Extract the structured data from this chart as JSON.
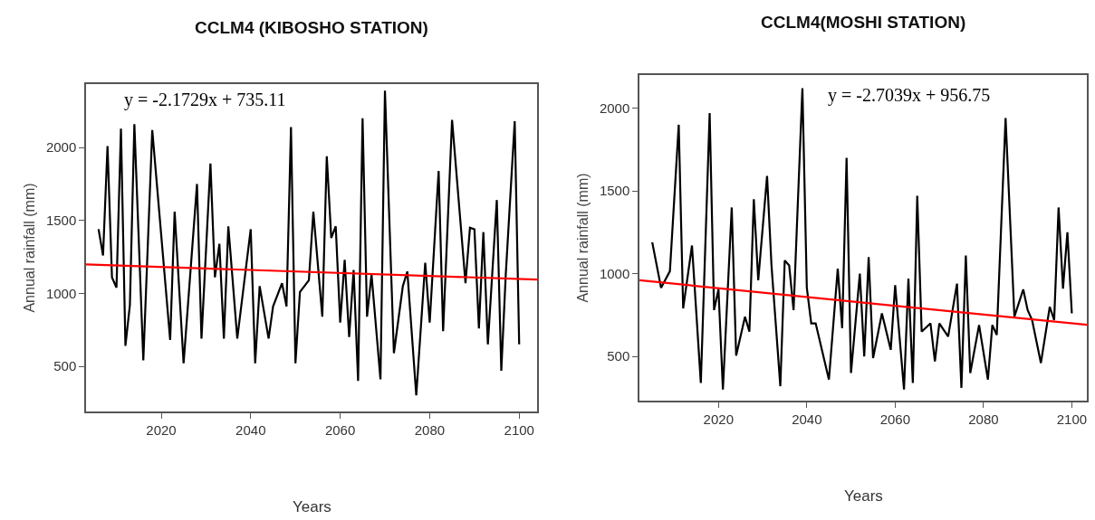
{
  "chart_data": [
    {
      "type": "line",
      "title": "CCLM4 (KIBOSHO STATION)",
      "xlabel": "Years",
      "ylabel": "Annual rainfall (mm)",
      "annotations": [
        "y = -2.1729x + 735.11"
      ],
      "xlim": [
        2003.2,
        2104
      ],
      "xticks": [
        2020,
        2040,
        2060,
        2080,
        2100
      ],
      "ylim": [
        190,
        2435
      ],
      "yticks": [
        500,
        1000,
        1500,
        2000
      ],
      "marker": "none",
      "line_style": "solid",
      "series": [
        {
          "color": "#000000",
          "x": [
            2006,
            2007,
            2008,
            2009,
            2010,
            2011,
            2012,
            2013,
            2014,
            2016,
            2018,
            2022,
            2023,
            2025,
            2028,
            2029,
            2031,
            2032,
            2033,
            2034,
            2035,
            2037,
            2040,
            2041,
            2042,
            2044,
            2045,
            2047,
            2048,
            2049,
            2050,
            2051,
            2053,
            2054,
            2056,
            2057,
            2058,
            2059,
            2060,
            2061,
            2062,
            2063,
            2064,
            2065,
            2066,
            2067,
            2069,
            2070,
            2072,
            2074,
            2075,
            2077,
            2079,
            2080,
            2082,
            2083,
            2085,
            2088,
            2089,
            2090,
            2091,
            2092,
            2093,
            2095,
            2096,
            2097,
            2099,
            2100
          ],
          "values": [
            1440,
            1260,
            2010,
            1110,
            1040,
            2130,
            640,
            920,
            2160,
            540,
            2120,
            680,
            1560,
            520,
            1750,
            690,
            1890,
            1110,
            1340,
            690,
            1460,
            690,
            1440,
            520,
            1050,
            690,
            910,
            1070,
            910,
            2140,
            520,
            1010,
            1090,
            1560,
            840,
            1940,
            1380,
            1460,
            800,
            1230,
            700,
            1160,
            400,
            2200,
            840,
            1130,
            410,
            2390,
            590,
            1050,
            1150,
            300,
            1210,
            800,
            1840,
            740,
            2190,
            1070,
            1450,
            1440,
            760,
            1420,
            650,
            1640,
            470,
            1130,
            2180,
            650
          ]
        },
        {
          "type": "line",
          "color": "#ff0000",
          "x": [
            2003.2,
            2104
          ],
          "values": [
            1198,
            1095
          ]
        }
      ]
    },
    {
      "type": "line",
      "title": "CCLM4(MOSHI STATION)",
      "xlabel": "Years",
      "ylabel": "Annual rainfall (mm)",
      "annotations": [
        "y = -2.7039x + 956.75"
      ],
      "xlim": [
        2002.1,
        2103.4
      ],
      "xticks": [
        2020,
        2040,
        2060,
        2080,
        2100
      ],
      "ylim": [
        233,
        2200
      ],
      "yticks": [
        500,
        1000,
        1500,
        2000
      ],
      "marker": "none",
      "line_style": "solid",
      "series": [
        {
          "color": "#000000",
          "x": [
            2005,
            2007,
            2009,
            2011,
            2012,
            2014,
            2016,
            2018,
            2019,
            2020,
            2021,
            2023,
            2024,
            2026,
            2027,
            2028,
            2029,
            2031,
            2032,
            2034,
            2035,
            2036,
            2037,
            2039,
            2040,
            2041,
            2042,
            2045,
            2047,
            2048,
            2049,
            2050,
            2052,
            2053,
            2054,
            2055,
            2057,
            2059,
            2060,
            2062,
            2063,
            2064,
            2065,
            2066,
            2068,
            2069,
            2070,
            2072,
            2074,
            2075,
            2076,
            2077,
            2079,
            2081,
            2082,
            2083,
            2085,
            2087,
            2089,
            2090,
            2091,
            2093,
            2095,
            2096,
            2097,
            2098,
            2099,
            2100
          ],
          "values": [
            1190,
            915,
            1015,
            1900,
            790,
            1170,
            340,
            1970,
            780,
            905,
            300,
            1400,
            505,
            740,
            650,
            1450,
            960,
            1590,
            1050,
            320,
            1080,
            1050,
            780,
            2120,
            915,
            700,
            700,
            360,
            1030,
            670,
            1700,
            400,
            1000,
            500,
            1100,
            490,
            760,
            540,
            930,
            300,
            970,
            340,
            1470,
            650,
            700,
            470,
            700,
            620,
            940,
            310,
            1110,
            400,
            690,
            360,
            690,
            630,
            1940,
            740,
            905,
            780,
            720,
            460,
            800,
            720,
            1400,
            910,
            1250,
            760
          ]
        },
        {
          "type": "line",
          "color": "#ff0000",
          "x": [
            2002.1,
            2103.4
          ],
          "values": [
            960,
            691
          ]
        }
      ]
    }
  ]
}
